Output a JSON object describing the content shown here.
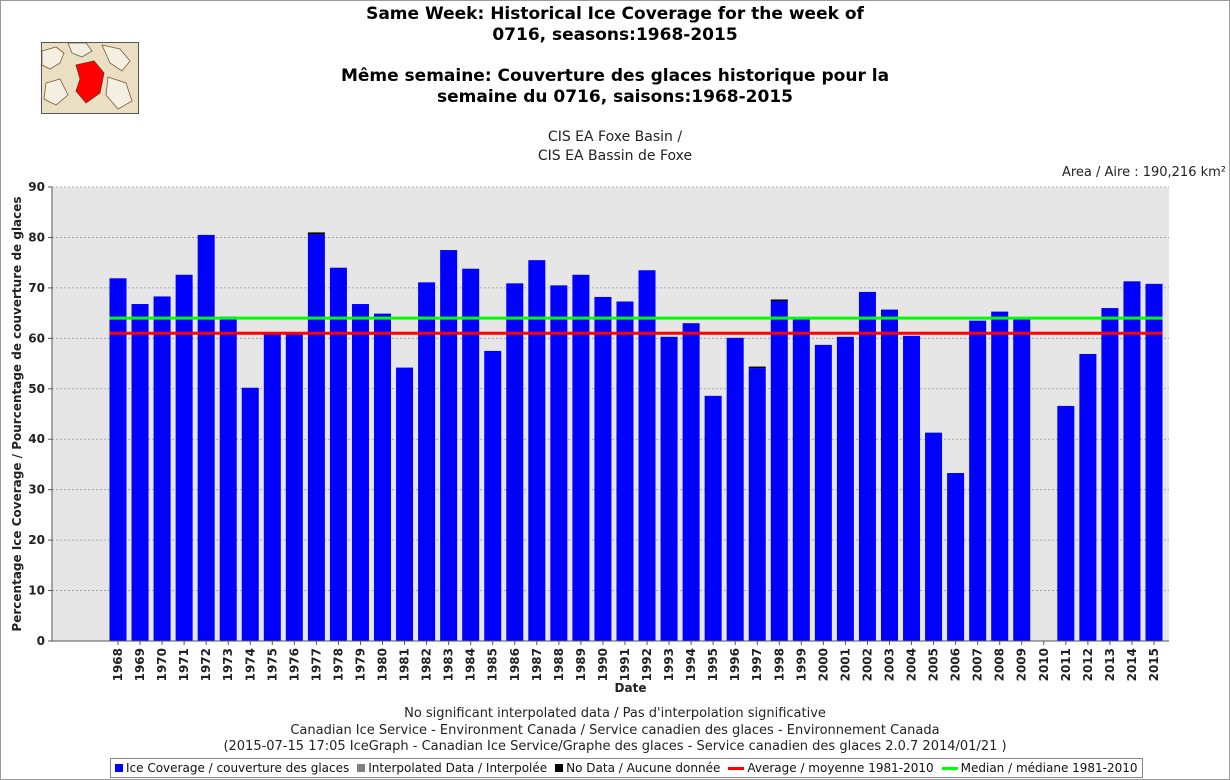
{
  "title": {
    "en_line1": "Same Week: Historical Ice Coverage for the week of",
    "en_line2": "0716, seasons:1968-2015",
    "fr_line1": "Même semaine: Couverture des glaces historique pour la",
    "fr_line2": "semaine du 0716, saisons:1968-2015"
  },
  "region": {
    "line1": "CIS EA Foxe Basin /",
    "line2": "CIS EA Bassin de Foxe"
  },
  "area_label": "Area / Aire : 190,216 km²",
  "footer": {
    "line1": "No significant interpolated data / Pas d'interpolation significative",
    "line2": "Canadian Ice Service - Environment Canada / Service canadien des glaces - Environnement Canada",
    "line3": "(2015-07-15 17:05 IceGraph - Canadian Ice Service/Graphe des glaces - Service canadien des glaces 2.0.7 2014/01/21 )"
  },
  "legend": {
    "ice": "Ice Coverage / couverture des glaces",
    "interp": "Interpolated Data / Interpolée",
    "nodata": "No Data / Aucune donnée",
    "average": "Average / moyenne 1981-2010",
    "median": "Median / médiane 1981-2010"
  },
  "colors": {
    "ice": "#0000ff",
    "interp": "#808080",
    "nodata": "#000000",
    "average": "#ff0000",
    "median": "#00ff00",
    "plot_bg": "#e6e6e6"
  },
  "chart_data": {
    "type": "bar",
    "ylabel": "Percentage Ice Coverage / Pourcentage de couverture de glaces",
    "xlabel": "Date",
    "ylim": [
      0,
      90
    ],
    "yticks": [
      0,
      10,
      20,
      30,
      40,
      50,
      60,
      70,
      80,
      90
    ],
    "grid": true,
    "categories": [
      "1968",
      "1969",
      "1970",
      "1971",
      "1972",
      "1973",
      "1974",
      "1975",
      "1976",
      "1977",
      "1978",
      "1979",
      "1980",
      "1981",
      "1982",
      "1983",
      "1984",
      "1985",
      "1986",
      "1987",
      "1988",
      "1989",
      "1990",
      "1991",
      "1992",
      "1993",
      "1994",
      "1995",
      "1996",
      "1997",
      "1998",
      "1999",
      "2000",
      "2001",
      "2002",
      "2003",
      "2004",
      "2005",
      "2006",
      "2007",
      "2008",
      "2009",
      "2010",
      "2011",
      "2012",
      "2013",
      "2014",
      "2015"
    ],
    "series": [
      {
        "name": "Ice Coverage / couverture des glaces",
        "values": [
          71.9,
          66.8,
          68.3,
          72.6,
          80.5,
          64.3,
          50.2,
          61.0,
          61.0,
          80.6,
          74.0,
          66.8,
          64.9,
          54.2,
          71.1,
          77.5,
          73.8,
          57.5,
          70.9,
          75.5,
          70.5,
          72.6,
          68.2,
          67.3,
          73.5,
          60.3,
          63.0,
          48.6,
          60.1,
          54.1,
          67.4,
          63.8,
          58.7,
          60.3,
          69.2,
          65.7,
          60.5,
          41.3,
          33.3,
          63.5,
          65.3,
          63.8,
          null,
          46.6,
          56.9,
          66.0,
          71.3,
          70.8
        ]
      },
      {
        "name": "No Data / Aucune donnée",
        "values": [
          0,
          0,
          0,
          0,
          0,
          0,
          0,
          0,
          0,
          0.4,
          0,
          0,
          0,
          0,
          0,
          0,
          0,
          0,
          0,
          0,
          0,
          0,
          0,
          0,
          0,
          0,
          0,
          0,
          0,
          0.3,
          0.3,
          0,
          0,
          0,
          0,
          0,
          0,
          0,
          0,
          0,
          0,
          0,
          0,
          0,
          0,
          0,
          0,
          0
        ]
      }
    ],
    "lines": [
      {
        "name": "Average / moyenne 1981-2010",
        "value": 61.0
      },
      {
        "name": "Median / médiane 1981-2010",
        "value": 64.0
      }
    ]
  }
}
